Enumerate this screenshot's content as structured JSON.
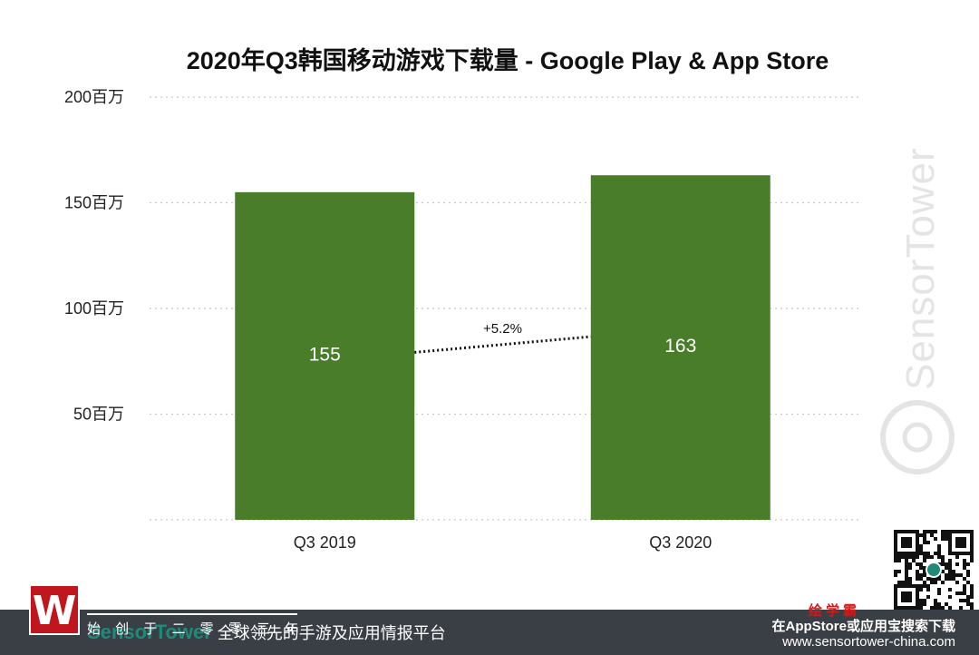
{
  "chart_data": {
    "type": "bar",
    "title": "2020年Q3韩国移动游戏下载量 - Google Play & App Store",
    "categories": [
      "Q3  2019",
      "Q3 2020"
    ],
    "values": [
      155,
      163
    ],
    "value_labels": [
      "155",
      "163"
    ],
    "ylim": [
      0,
      200
    ],
    "yticks": [
      {
        "value": 50,
        "label": "50百万"
      },
      {
        "value": 100,
        "label": "100百万"
      },
      {
        "value": 150,
        "label": "150百万"
      },
      {
        "value": 200,
        "label": "200百万"
      }
    ],
    "xlabel": "",
    "ylabel": "",
    "grid": true,
    "bar_color": "#4a7d2a",
    "growth_annotation": "+5.2%"
  },
  "watermark": {
    "text": "SensorTower"
  },
  "footer": {
    "brand": "SensorTower",
    "tagline": "全球领先的手游及应用情报平台",
    "overlay_text": "始 创 于 二 零 零 三 年",
    "right_line1": "在AppStore或应用宝搜索下载",
    "right_line2": "www.sensortower-china.com",
    "stamp": "绘学霸",
    "logo_letter": "W",
    "background_color": "#3a3f45"
  }
}
